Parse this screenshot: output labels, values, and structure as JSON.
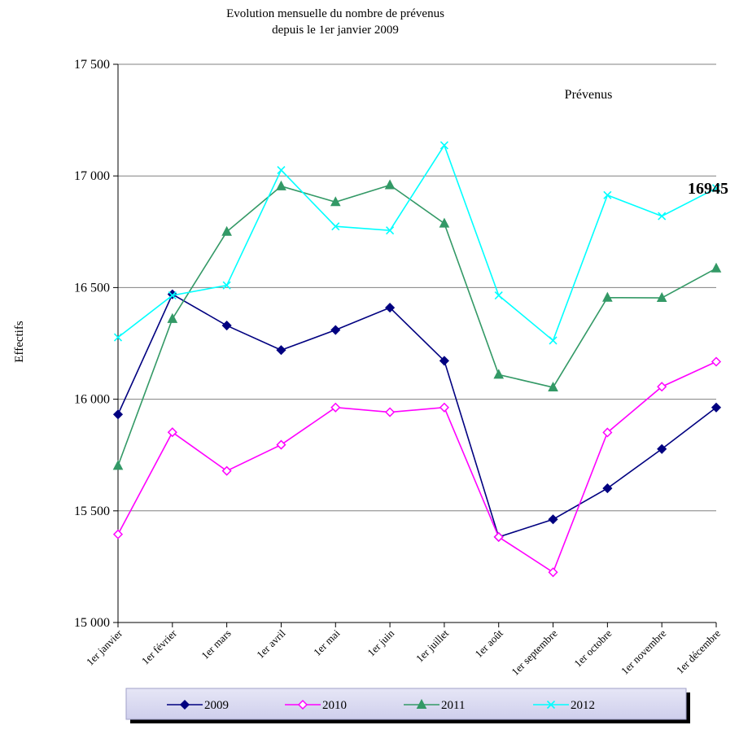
{
  "chart_data": {
    "type": "line",
    "title": [
      "Evolution mensuelle du nombre de prévenus",
      "depuis le 1er janvier 2009"
    ],
    "ylabel": "Effectifs",
    "xlabel": "",
    "inner_label": "Prévenus",
    "categories": [
      "1er janvier",
      "1er février",
      "1er mars",
      "1er avril",
      "1er mai",
      "1er juin",
      "1er juillet",
      "1er août",
      "1er septembre",
      "1er octobre",
      "1er novembre",
      "1er décembre"
    ],
    "ylim": [
      15000,
      17500
    ],
    "yticks": [
      15000,
      15500,
      16000,
      16500,
      17000,
      17500
    ],
    "ytick_labels": [
      "15 000",
      "15 500",
      "16 000",
      "16 500",
      "17 000",
      "17 500"
    ],
    "grid": true,
    "legend_position": "bottom",
    "series": [
      {
        "name": "2009",
        "color": "#000080",
        "marker": "diamond-filled",
        "values": [
          15932,
          16470,
          16330,
          16220,
          16310,
          16410,
          16172,
          15383,
          15462,
          15601,
          15777,
          15963
        ]
      },
      {
        "name": "2010",
        "color": "#ff00ff",
        "marker": "diamond-open",
        "values": [
          15395,
          15852,
          15679,
          15796,
          15963,
          15942,
          15963,
          15383,
          15225,
          15851,
          16056,
          16168
        ]
      },
      {
        "name": "2011",
        "color": "#339966",
        "marker": "triangle-filled",
        "values": [
          15702,
          16360,
          16750,
          16954,
          16883,
          16959,
          16787,
          16110,
          16053,
          16455,
          16454,
          16586
        ]
      },
      {
        "name": "2012",
        "color": "#00ffff",
        "marker": "x",
        "values": [
          16277,
          16465,
          16510,
          17026,
          16774,
          16756,
          17137,
          16465,
          16263,
          16914,
          16820,
          16945
        ]
      }
    ],
    "annotation": {
      "text": "16945"
    }
  }
}
